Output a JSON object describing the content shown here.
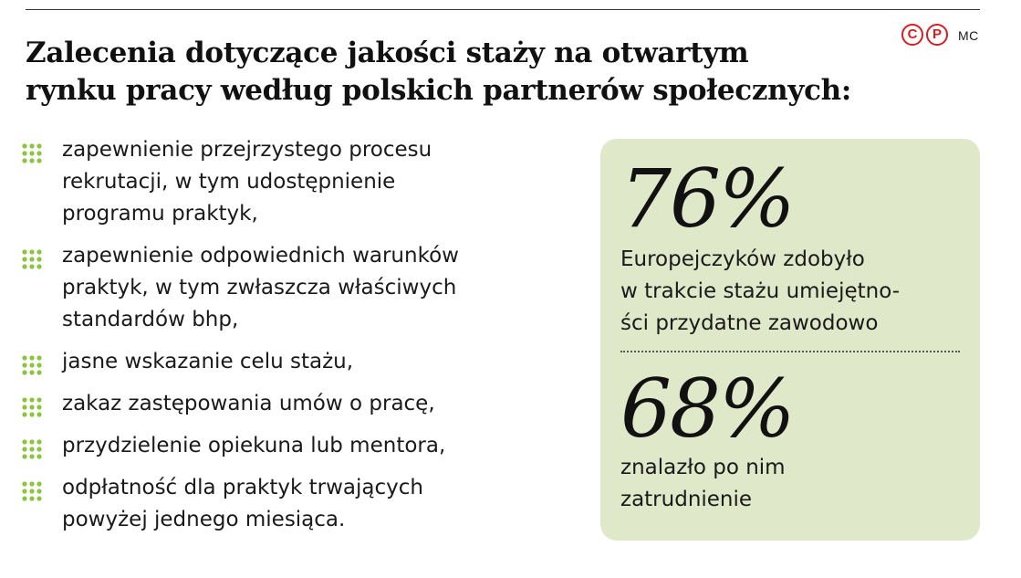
{
  "header": {
    "logo": {
      "letter_c": "C",
      "letter_p": "P"
    },
    "author": "MC",
    "title_lines": [
      "Zalecenia dotyczące jakości staży na otwartym",
      "rynku pracy według polskich partnerów społecznych:"
    ]
  },
  "bullets": [
    {
      "lines": [
        "zapewnienie przejrzystego procesu",
        "rekrutacji, w tym udostępnienie",
        "programu praktyk,"
      ]
    },
    {
      "lines": [
        "zapewnienie odpowiednich warunków",
        "praktyk, w tym zwłaszcza właściwych",
        "standardów bhp,"
      ]
    },
    {
      "lines": [
        "jasne wskazanie celu stażu,"
      ]
    },
    {
      "lines": [
        "zakaz zastępowania umów o pracę,"
      ]
    },
    {
      "lines": [
        "przydzielenie opiekuna lub mentora,"
      ]
    },
    {
      "lines": [
        "odpłatność dla praktyk trwających",
        "powyżej jednego miesiąca."
      ]
    }
  ],
  "stats": [
    {
      "value": "76%",
      "desc_lines": [
        "Europejczyków zdobyło",
        "w trakcie stażu umiejętno-",
        "ści przydatne zawodowo"
      ]
    },
    {
      "value": "68%",
      "desc_lines": [
        "znalazło po nim",
        "zatrudnienie"
      ]
    }
  ],
  "colors": {
    "bullet_green": "#8cc43f",
    "panel_background": "#dfe9c9",
    "logo_red": "#d51d24"
  },
  "icons": {
    "bullet": "green-dot-grid-icon"
  }
}
